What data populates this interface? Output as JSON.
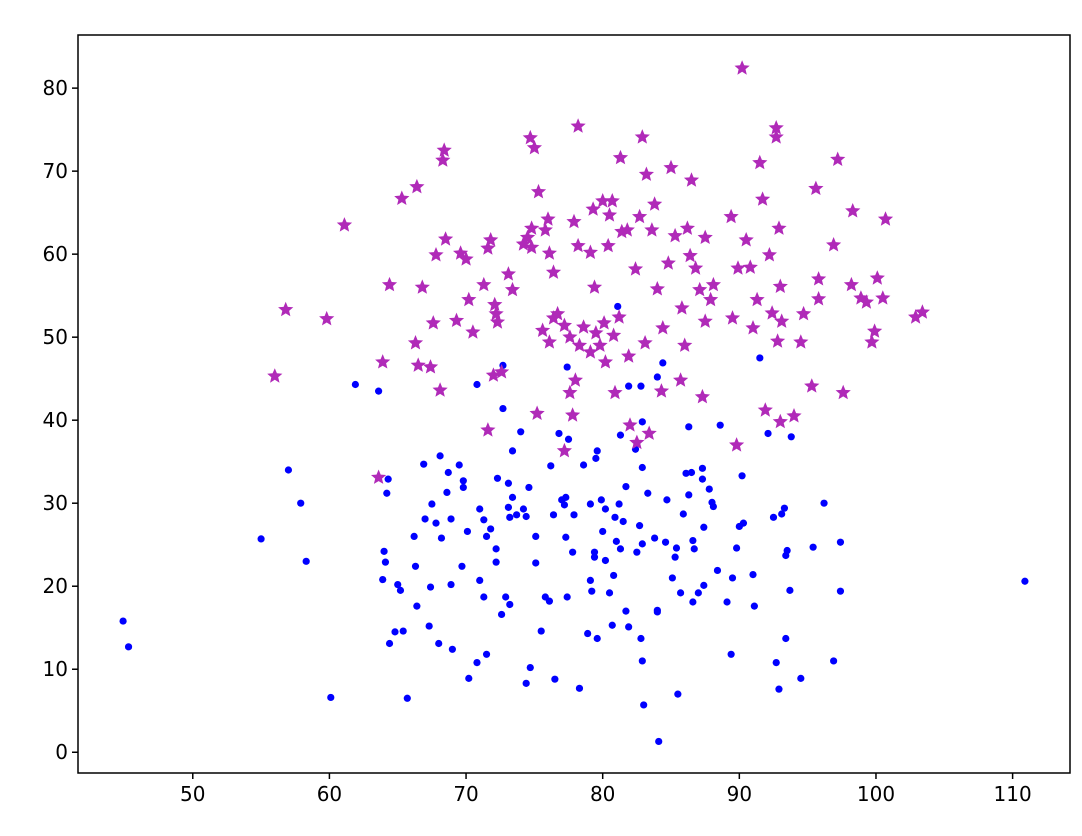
{
  "chart_data": {
    "type": "scatter",
    "xlim": [
      41.6,
      114.2
    ],
    "ylim": [
      -2.5,
      86.4
    ],
    "xticks": [
      50,
      60,
      70,
      80,
      90,
      100,
      110
    ],
    "yticks": [
      0,
      10,
      20,
      30,
      40,
      50,
      60,
      70,
      80
    ],
    "series": [
      {
        "color": "#0000ff",
        "marker": "circle",
        "x": [
          44.9,
          45.3,
          55.0,
          57.0,
          57.9,
          58.3,
          60.1,
          61.9,
          63.6,
          63.9,
          64.0,
          64.1,
          64.3,
          64.2,
          64.4,
          64.8,
          65.0,
          65.2,
          65.4,
          65.7,
          66.2,
          66.3,
          66.4,
          66.9,
          67.0,
          67.3,
          67.4,
          67.5,
          67.8,
          68.0,
          68.1,
          68.2,
          68.6,
          68.7,
          68.9,
          68.9,
          69.0,
          69.5,
          69.7,
          69.8,
          69.8,
          70.1,
          70.2,
          70.8,
          70.8,
          71.0,
          71.0,
          71.3,
          71.3,
          71.5,
          71.5,
          71.8,
          72.2,
          72.2,
          72.3,
          72.6,
          72.7,
          72.7,
          72.9,
          73.1,
          73.1,
          73.2,
          73.2,
          73.4,
          73.4,
          73.7,
          74.0,
          74.2,
          74.4,
          74.4,
          74.6,
          74.7,
          75.1,
          75.1,
          75.5,
          75.8,
          76.1,
          76.2,
          76.4,
          76.5,
          76.8,
          77.0,
          77.2,
          77.3,
          77.3,
          77.4,
          77.4,
          77.5,
          77.8,
          77.9,
          78.3,
          78.6,
          78.9,
          79.1,
          79.1,
          79.2,
          79.4,
          79.4,
          79.5,
          79.6,
          79.6,
          79.9,
          80.0,
          80.2,
          80.2,
          80.5,
          80.7,
          80.8,
          80.9,
          81.0,
          81.1,
          81.2,
          81.3,
          81.3,
          81.5,
          81.7,
          81.7,
          81.9,
          81.9,
          82.4,
          82.5,
          82.7,
          82.8,
          82.8,
          82.9,
          82.9,
          82.9,
          82.9,
          83.0,
          83.3,
          83.8,
          84.0,
          84.0,
          84.0,
          84.1,
          84.4,
          84.6,
          84.7,
          85.1,
          85.3,
          85.4,
          85.5,
          85.7,
          85.9,
          86.1,
          86.3,
          86.3,
          86.5,
          86.6,
          86.6,
          86.7,
          87.0,
          87.3,
          87.3,
          87.4,
          87.4,
          87.8,
          88.0,
          88.1,
          88.4,
          88.6,
          89.1,
          89.4,
          89.5,
          89.8,
          90.0,
          90.2,
          90.3,
          91.0,
          91.1,
          91.5,
          92.1,
          92.5,
          92.7,
          92.9,
          93.1,
          93.3,
          93.4,
          93.4,
          93.5,
          93.7,
          93.8,
          94.5,
          95.4,
          96.2,
          96.9,
          97.4,
          97.4,
          110.9
        ],
        "y": [
          15.8,
          12.7,
          25.7,
          34.0,
          30.0,
          23.0,
          6.6,
          44.3,
          43.5,
          20.8,
          24.2,
          22.9,
          32.9,
          31.2,
          13.1,
          14.5,
          20.2,
          19.5,
          14.6,
          6.5,
          26.0,
          22.4,
          17.6,
          34.7,
          28.1,
          15.2,
          19.9,
          29.9,
          27.6,
          13.1,
          35.7,
          25.8,
          31.3,
          33.7,
          28.1,
          20.2,
          12.4,
          34.6,
          22.4,
          32.7,
          31.9,
          26.6,
          8.9,
          44.3,
          10.8,
          29.3,
          20.7,
          18.7,
          28.0,
          11.8,
          26.0,
          26.9,
          24.5,
          22.9,
          33.0,
          16.6,
          41.4,
          46.6,
          18.7,
          29.5,
          32.4,
          17.8,
          28.3,
          36.3,
          30.7,
          28.6,
          38.6,
          29.3,
          8.3,
          28.4,
          31.9,
          10.2,
          26.0,
          22.8,
          14.6,
          18.7,
          18.2,
          34.5,
          28.6,
          8.8,
          38.4,
          30.4,
          29.8,
          30.7,
          25.9,
          18.7,
          46.4,
          37.7,
          24.1,
          28.6,
          7.7,
          34.6,
          14.3,
          29.9,
          20.7,
          19.4,
          24.1,
          23.5,
          35.4,
          36.3,
          13.7,
          30.4,
          26.6,
          23.1,
          29.3,
          19.2,
          15.3,
          21.3,
          28.3,
          25.4,
          53.7,
          29.9,
          24.5,
          38.2,
          27.8,
          32.0,
          17.0,
          15.1,
          44.1,
          36.5,
          24.1,
          27.3,
          44.1,
          13.7,
          25.1,
          11.0,
          34.3,
          39.8,
          5.7,
          31.2,
          25.8,
          17.1,
          16.9,
          45.2,
          1.3,
          46.9,
          25.3,
          30.4,
          21.0,
          23.5,
          24.6,
          7.0,
          19.2,
          28.7,
          33.6,
          39.2,
          31.0,
          33.7,
          25.5,
          18.1,
          24.5,
          19.2,
          34.2,
          32.9,
          27.1,
          20.1,
          31.7,
          30.1,
          29.6,
          21.9,
          39.4,
          18.1,
          11.8,
          21.0,
          24.6,
          27.2,
          33.3,
          27.6,
          21.4,
          17.6,
          47.5,
          38.4,
          28.3,
          10.8,
          7.6,
          28.7,
          29.4,
          23.7,
          13.7,
          24.3,
          19.5,
          38.0,
          8.9,
          24.7,
          30.0,
          11.0,
          25.3,
          19.4,
          20.6
        ]
      },
      {
        "color": "#b02ab8",
        "marker": "star",
        "x": [
          56.0,
          56.8,
          59.8,
          61.1,
          63.6,
          63.9,
          64.4,
          65.3,
          66.3,
          66.4,
          66.5,
          66.8,
          67.4,
          67.6,
          67.8,
          68.1,
          68.3,
          68.4,
          68.5,
          69.3,
          69.6,
          70.0,
          70.2,
          70.5,
          71.3,
          71.6,
          71.6,
          71.8,
          72.0,
          72.1,
          72.2,
          72.3,
          72.6,
          73.1,
          73.4,
          74.2,
          74.5,
          74.7,
          74.8,
          74.8,
          75.0,
          75.2,
          75.3,
          75.6,
          75.8,
          76.0,
          76.1,
          76.1,
          76.4,
          76.4,
          76.7,
          77.2,
          77.2,
          77.6,
          77.6,
          77.8,
          77.9,
          78.0,
          78.2,
          78.2,
          78.3,
          78.6,
          79.1,
          79.1,
          79.3,
          79.4,
          79.5,
          79.8,
          80.0,
          80.1,
          80.2,
          80.4,
          80.5,
          80.7,
          80.8,
          80.9,
          81.2,
          81.3,
          81.4,
          81.8,
          81.9,
          82.0,
          82.4,
          82.5,
          82.7,
          82.9,
          83.1,
          83.2,
          83.4,
          83.6,
          83.8,
          84.0,
          84.3,
          84.4,
          84.8,
          85.0,
          85.3,
          85.7,
          85.8,
          86.0,
          86.2,
          86.4,
          86.5,
          86.8,
          87.1,
          87.3,
          87.5,
          87.5,
          87.9,
          88.1,
          89.4,
          89.5,
          89.8,
          89.9,
          90.2,
          90.5,
          90.8,
          91.0,
          91.3,
          91.5,
          91.7,
          91.9,
          92.2,
          92.4,
          92.7,
          92.7,
          92.9,
          93.0,
          93.0,
          92.8,
          93.1,
          94.0,
          94.5,
          94.7,
          95.3,
          95.6,
          95.8,
          95.8,
          96.9,
          97.2,
          97.6,
          98.2,
          98.3,
          98.9,
          99.3,
          99.7,
          99.9,
          100.1,
          100.5,
          100.7,
          102.9,
          103.4
        ],
        "y": [
          45.3,
          53.3,
          52.2,
          63.5,
          33.1,
          47.0,
          56.3,
          66.7,
          49.3,
          68.1,
          46.6,
          56.0,
          46.4,
          51.7,
          59.9,
          43.6,
          71.3,
          72.5,
          61.8,
          52.0,
          60.1,
          59.4,
          54.5,
          50.6,
          56.3,
          38.8,
          60.7,
          61.7,
          45.4,
          53.9,
          52.8,
          51.8,
          45.8,
          57.6,
          55.7,
          61.2,
          62.0,
          74.0,
          63.1,
          60.8,
          72.8,
          40.8,
          67.5,
          50.8,
          62.9,
          64.2,
          49.4,
          60.1,
          52.3,
          57.8,
          52.8,
          51.4,
          36.3,
          50.0,
          43.3,
          40.6,
          63.9,
          44.8,
          75.4,
          61.0,
          49.0,
          51.2,
          48.2,
          60.2,
          65.4,
          56.0,
          50.5,
          49.0,
          66.4,
          51.7,
          47.0,
          61.0,
          64.7,
          66.4,
          50.2,
          43.3,
          52.4,
          71.6,
          62.7,
          62.9,
          47.7,
          39.4,
          58.2,
          37.3,
          64.5,
          74.1,
          49.3,
          69.6,
          38.4,
          62.9,
          66.0,
          55.8,
          43.5,
          51.1,
          58.9,
          70.4,
          62.2,
          44.8,
          53.5,
          49.0,
          63.1,
          59.8,
          68.9,
          58.3,
          55.7,
          42.8,
          62.0,
          51.9,
          54.5,
          56.3,
          64.5,
          52.3,
          37.0,
          58.3,
          82.4,
          61.7,
          58.4,
          51.1,
          54.5,
          71.0,
          66.6,
          41.2,
          59.9,
          52.9,
          75.2,
          74.1,
          63.1,
          39.8,
          56.1,
          49.5,
          51.9,
          40.5,
          49.4,
          52.8,
          44.1,
          67.9,
          57.0,
          54.6,
          61.1,
          71.4,
          43.3,
          56.3,
          65.2,
          54.7,
          54.2,
          49.4,
          50.7,
          57.1,
          54.7,
          64.2,
          52.4,
          53.0
        ]
      }
    ]
  }
}
